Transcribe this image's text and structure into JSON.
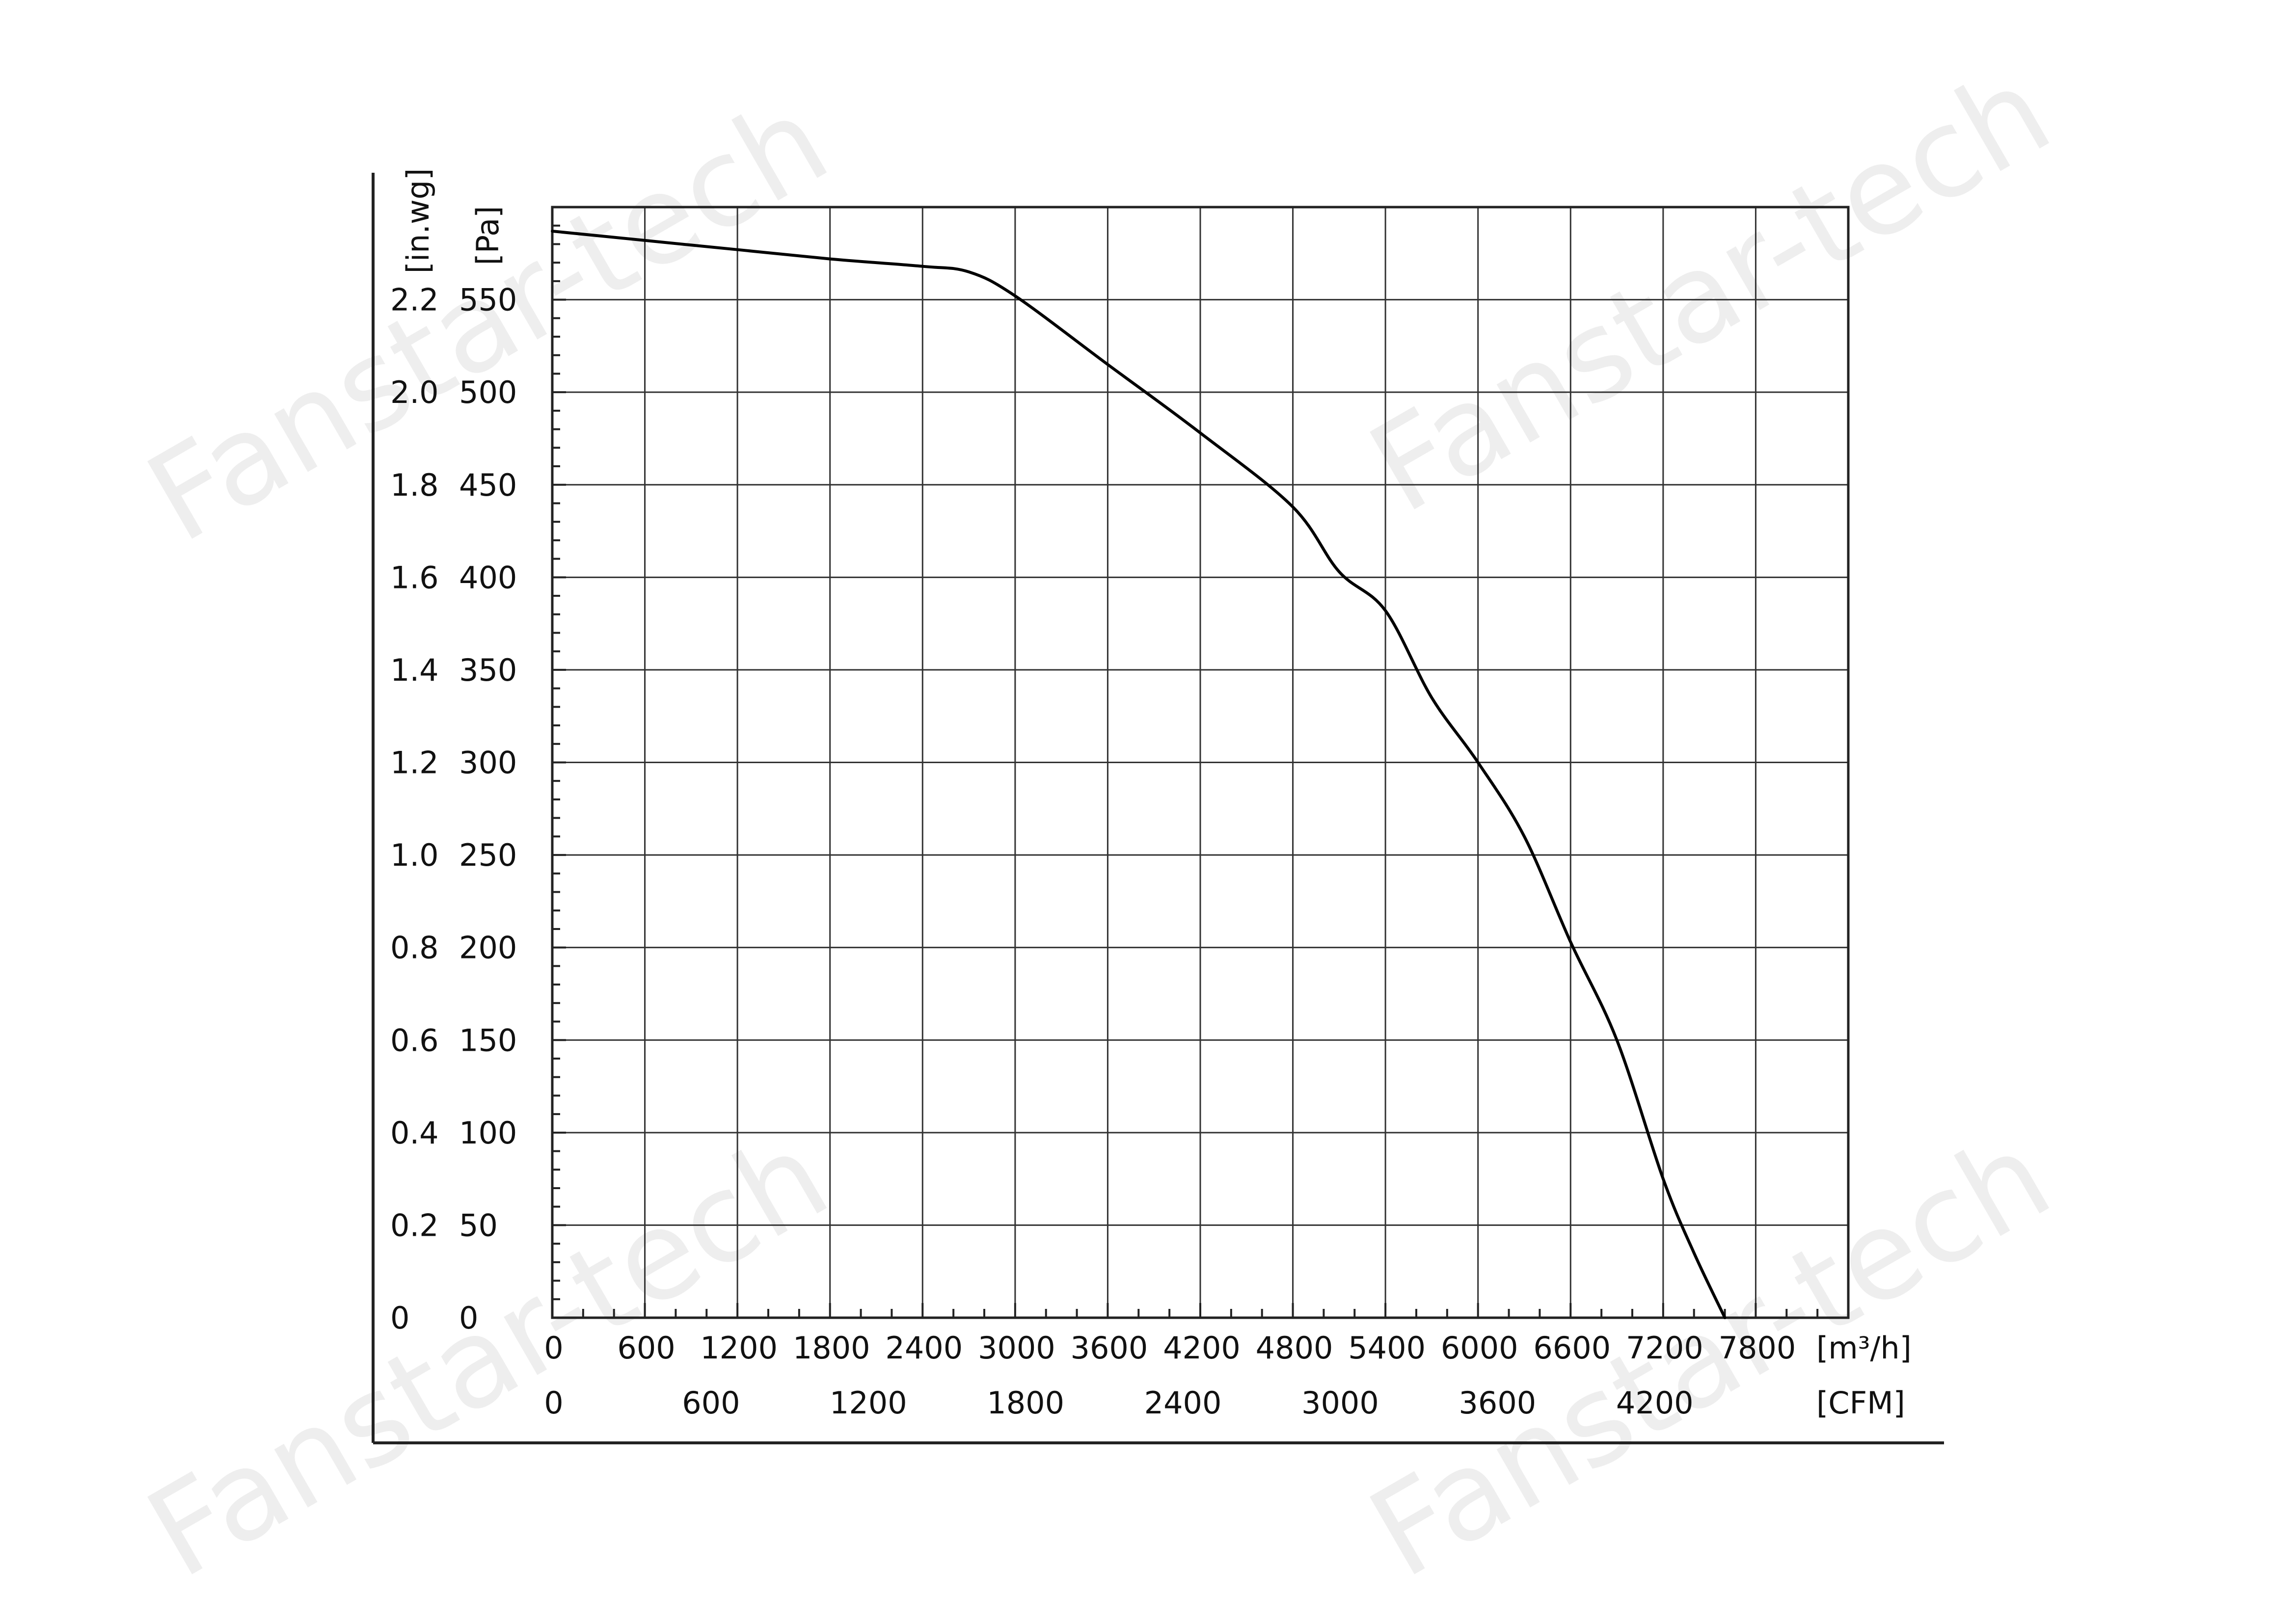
{
  "chart_data": {
    "type": "line",
    "title": "",
    "watermark": "Fanstar-tech",
    "x_primary": {
      "unit_label": "[m³/h]",
      "ticks": [
        0,
        600,
        1200,
        1800,
        2400,
        3000,
        3600,
        4200,
        4800,
        5400,
        6000,
        6600,
        7200,
        7800
      ],
      "range": [
        0,
        8400
      ]
    },
    "x_secondary": {
      "unit_label": "[CFM]",
      "ticks": [
        0,
        600,
        1200,
        1800,
        2400,
        3000,
        3600,
        4200
      ],
      "range": [
        0,
        4944
      ]
    },
    "y_primary": {
      "unit_label": "[Pa]",
      "ticks": [
        0,
        50,
        100,
        150,
        200,
        250,
        300,
        350,
        400,
        450,
        500,
        550
      ],
      "range": [
        0,
        600
      ]
    },
    "y_secondary": {
      "unit_label": "[in.wg]",
      "ticks": [
        "0",
        "0.2",
        "0.4",
        "0.6",
        "0.8",
        "1.0",
        "1.2",
        "1.4",
        "1.6",
        "1.8",
        "2.0",
        "2.2"
      ]
    },
    "grid": true,
    "series": [
      {
        "color": "#000000",
        "x": [
          0,
          600,
          1200,
          1800,
          2400,
          2700,
          3000,
          3600,
          4200,
          4800,
          5100,
          5400,
          5700,
          6000,
          6300,
          6600,
          6900,
          7200,
          7400,
          7600
        ],
        "y": [
          587,
          582,
          577,
          572,
          568,
          565,
          552,
          515,
          478,
          438,
          403,
          382,
          335,
          300,
          260,
          203,
          150,
          75,
          35,
          0
        ]
      }
    ]
  }
}
